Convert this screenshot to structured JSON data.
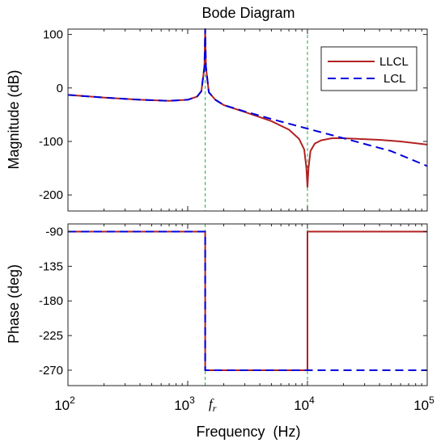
{
  "chart_data": {
    "type": "line",
    "title": "Bode Diagram",
    "xlabel": "Frequency  (Hz)",
    "xscale": "log",
    "xlim": [
      100,
      100000
    ],
    "x_ticks": [
      {
        "base": "10",
        "exp": "2"
      },
      {
        "base": "10",
        "exp": "3"
      },
      {
        "base": "10",
        "exp": "4"
      },
      {
        "base": "10",
        "exp": "5"
      }
    ],
    "resonance_label": {
      "main": "f",
      "sub": "r"
    },
    "markers_hz": [
      1400,
      10000
    ],
    "legend": {
      "placement": "top-right",
      "entries": [
        "LLCL",
        "LCL"
      ]
    },
    "colors": {
      "LLCL": "#b22222",
      "LCL": "#0000dd",
      "markers": "#22aa44"
    },
    "magnitude": {
      "ylabel": "Magnitude (dB)",
      "ylim": [
        -230,
        110
      ],
      "y_ticks": [
        "100",
        "0",
        "-100",
        "-200"
      ],
      "series": [
        {
          "name": "LLCL",
          "points": [
            [
              100,
              -13
            ],
            [
              200,
              -18
            ],
            [
              400,
              -22
            ],
            [
              700,
              -24
            ],
            [
              1000,
              -22
            ],
            [
              1200,
              -16
            ],
            [
              1300,
              -6
            ],
            [
              1380,
              40
            ],
            [
              1400,
              110
            ],
            [
              1420,
              40
            ],
            [
              1500,
              -8
            ],
            [
              1700,
              -22
            ],
            [
              2000,
              -32
            ],
            [
              3000,
              -45
            ],
            [
              5000,
              -62
            ],
            [
              7000,
              -78
            ],
            [
              8500,
              -95
            ],
            [
              9400,
              -115
            ],
            [
              9800,
              -150
            ],
            [
              10000,
              -185
            ],
            [
              10200,
              -150
            ],
            [
              10600,
              -118
            ],
            [
              11500,
              -104
            ],
            [
              13000,
              -98
            ],
            [
              16000,
              -94
            ],
            [
              20000,
              -94
            ],
            [
              40000,
              -97
            ],
            [
              60000,
              -100
            ],
            [
              100000,
              -106
            ]
          ]
        },
        {
          "name": "LCL",
          "points": [
            [
              100,
              -13
            ],
            [
              200,
              -18
            ],
            [
              400,
              -22
            ],
            [
              700,
              -24
            ],
            [
              1000,
              -22
            ],
            [
              1200,
              -16
            ],
            [
              1300,
              -6
            ],
            [
              1380,
              40
            ],
            [
              1400,
              110
            ],
            [
              1420,
              40
            ],
            [
              1500,
              -8
            ],
            [
              1700,
              -22
            ],
            [
              2000,
              -32
            ],
            [
              3000,
              -44
            ],
            [
              5000,
              -58
            ],
            [
              10000,
              -76
            ],
            [
              20000,
              -94
            ],
            [
              50000,
              -118
            ],
            [
              100000,
              -146
            ]
          ]
        }
      ]
    },
    "phase": {
      "ylabel": "Phase (deg)",
      "ylim": [
        -290,
        -80
      ],
      "y_ticks": [
        "-90",
        "-135",
        "-180",
        "-225",
        "-270"
      ],
      "series": [
        {
          "name": "LLCL",
          "points": [
            [
              100,
              -90
            ],
            [
              1400,
              -90
            ],
            [
              1400,
              -270
            ],
            [
              10000,
              -270
            ],
            [
              10000,
              -90
            ],
            [
              100000,
              -90
            ]
          ]
        },
        {
          "name": "LCL",
          "points": [
            [
              100,
              -90
            ],
            [
              1400,
              -90
            ],
            [
              1400,
              -270
            ],
            [
              100000,
              -270
            ]
          ]
        }
      ]
    }
  }
}
